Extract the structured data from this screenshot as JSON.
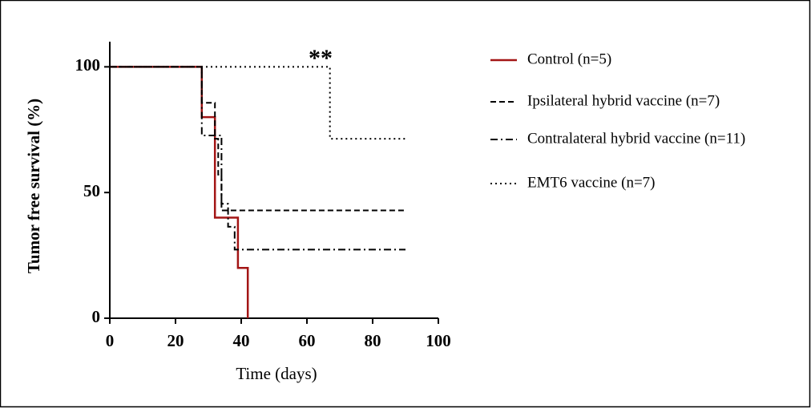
{
  "chart_data": {
    "type": "line",
    "step": true,
    "xlabel": "Time (days)",
    "ylabel": "Tumor free survival (%)",
    "xlim": [
      0,
      100
    ],
    "ylim": [
      0,
      110
    ],
    "xticks": [
      0,
      20,
      40,
      60,
      80,
      100
    ],
    "yticks": [
      0,
      50,
      100
    ],
    "annotation": "**",
    "series": [
      {
        "name": "Control (n=5)",
        "color": "#a31515",
        "dash": "solid",
        "x": [
          0,
          28,
          32,
          39,
          42
        ],
        "values": [
          100,
          80,
          40,
          20,
          0
        ]
      },
      {
        "name": "Ipsilateral hybrid vaccine (n=7)",
        "color": "#000000",
        "dash": "dashed",
        "x": [
          0,
          28,
          32,
          33,
          34,
          90
        ],
        "values": [
          100,
          85.7,
          71.4,
          57.1,
          42.9,
          42.9
        ]
      },
      {
        "name": "Contralateral hybrid vaccine (n=11)",
        "color": "#000000",
        "dash": "dashdot",
        "x": [
          0,
          28,
          34,
          36,
          37,
          38,
          90
        ],
        "values": [
          100,
          72.7,
          45.5,
          36.4,
          36.4,
          27.3,
          27.3
        ]
      },
      {
        "name": "EMT6 vaccine (n=7)",
        "color": "#000000",
        "dash": "dotted",
        "x": [
          0,
          67,
          90
        ],
        "values": [
          100,
          71.4,
          71.4
        ]
      }
    ]
  }
}
